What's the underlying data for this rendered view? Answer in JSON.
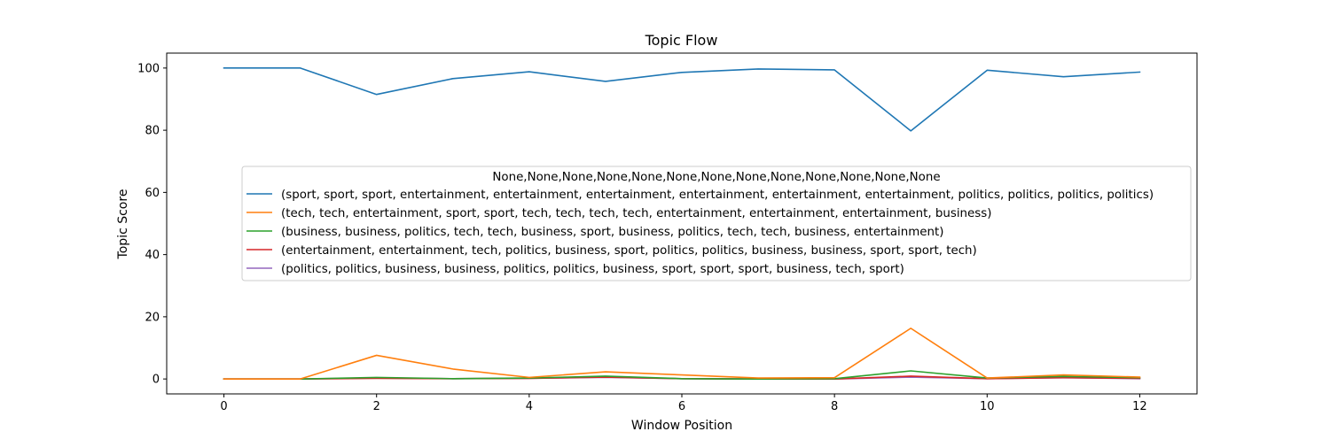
{
  "chart_data": {
    "type": "line",
    "title": "Topic Flow",
    "xlabel": "Window Position",
    "ylabel": "Topic Score",
    "x": [
      0,
      1,
      2,
      3,
      4,
      5,
      6,
      7,
      8,
      9,
      10,
      11,
      12
    ],
    "xlim": [
      -0.75,
      12.75
    ],
    "ylim": [
      -4.8,
      104.8
    ],
    "xticks": [
      0,
      2,
      4,
      6,
      8,
      10,
      12
    ],
    "yticks": [
      0,
      20,
      40,
      60,
      80,
      100
    ],
    "grid": false,
    "legend": {
      "title": "None,None,None,None,None,None,None,None,None,None,None,None,None",
      "placement": "center"
    },
    "series": [
      {
        "name": "(sport, sport, sport, entertainment, entertainment, entertainment, entertainment, entertainment, entertainment, politics, politics, politics, politics)",
        "color": "#1f77b4",
        "values": [
          100,
          100,
          91.5,
          96.6,
          98.8,
          95.7,
          98.6,
          99.7,
          99.4,
          79.8,
          99.3,
          97.2,
          98.7
        ]
      },
      {
        "name": "(tech, tech, entertainment, sport, sport, tech, tech, tech, tech, entertainment, entertainment, entertainment, business)",
        "color": "#ff7f0e",
        "values": [
          0,
          0,
          7.6,
          3.2,
          0.5,
          2.3,
          1.3,
          0.3,
          0.4,
          16.3,
          0.3,
          1.3,
          0.6
        ]
      },
      {
        "name": "(business, business, politics, tech, tech, business, sport, business, politics, tech, tech, business, entertainment)",
        "color": "#2ca02c",
        "values": [
          0,
          0,
          0.5,
          0.1,
          0.3,
          0.9,
          0.1,
          0,
          0.1,
          2.6,
          0.3,
          0.8,
          0.4
        ]
      },
      {
        "name": "(entertainment, entertainment, tech, politics, business, sport, politics, politics, business, business, sport, sport, tech)",
        "color": "#d62728",
        "values": [
          0,
          0,
          0.2,
          0.1,
          0.2,
          0.6,
          0.1,
          0,
          0,
          0.9,
          0.1,
          0.4,
          0.2
        ]
      },
      {
        "name": "(politics, politics, business, business, politics, politics, business, sport, sport, sport, business, tech, sport)",
        "color": "#9467bd",
        "values": [
          0,
          0,
          0.3,
          0.1,
          0.2,
          0.5,
          0.1,
          0,
          0,
          0.6,
          0.1,
          0.4,
          0.1
        ]
      }
    ]
  }
}
